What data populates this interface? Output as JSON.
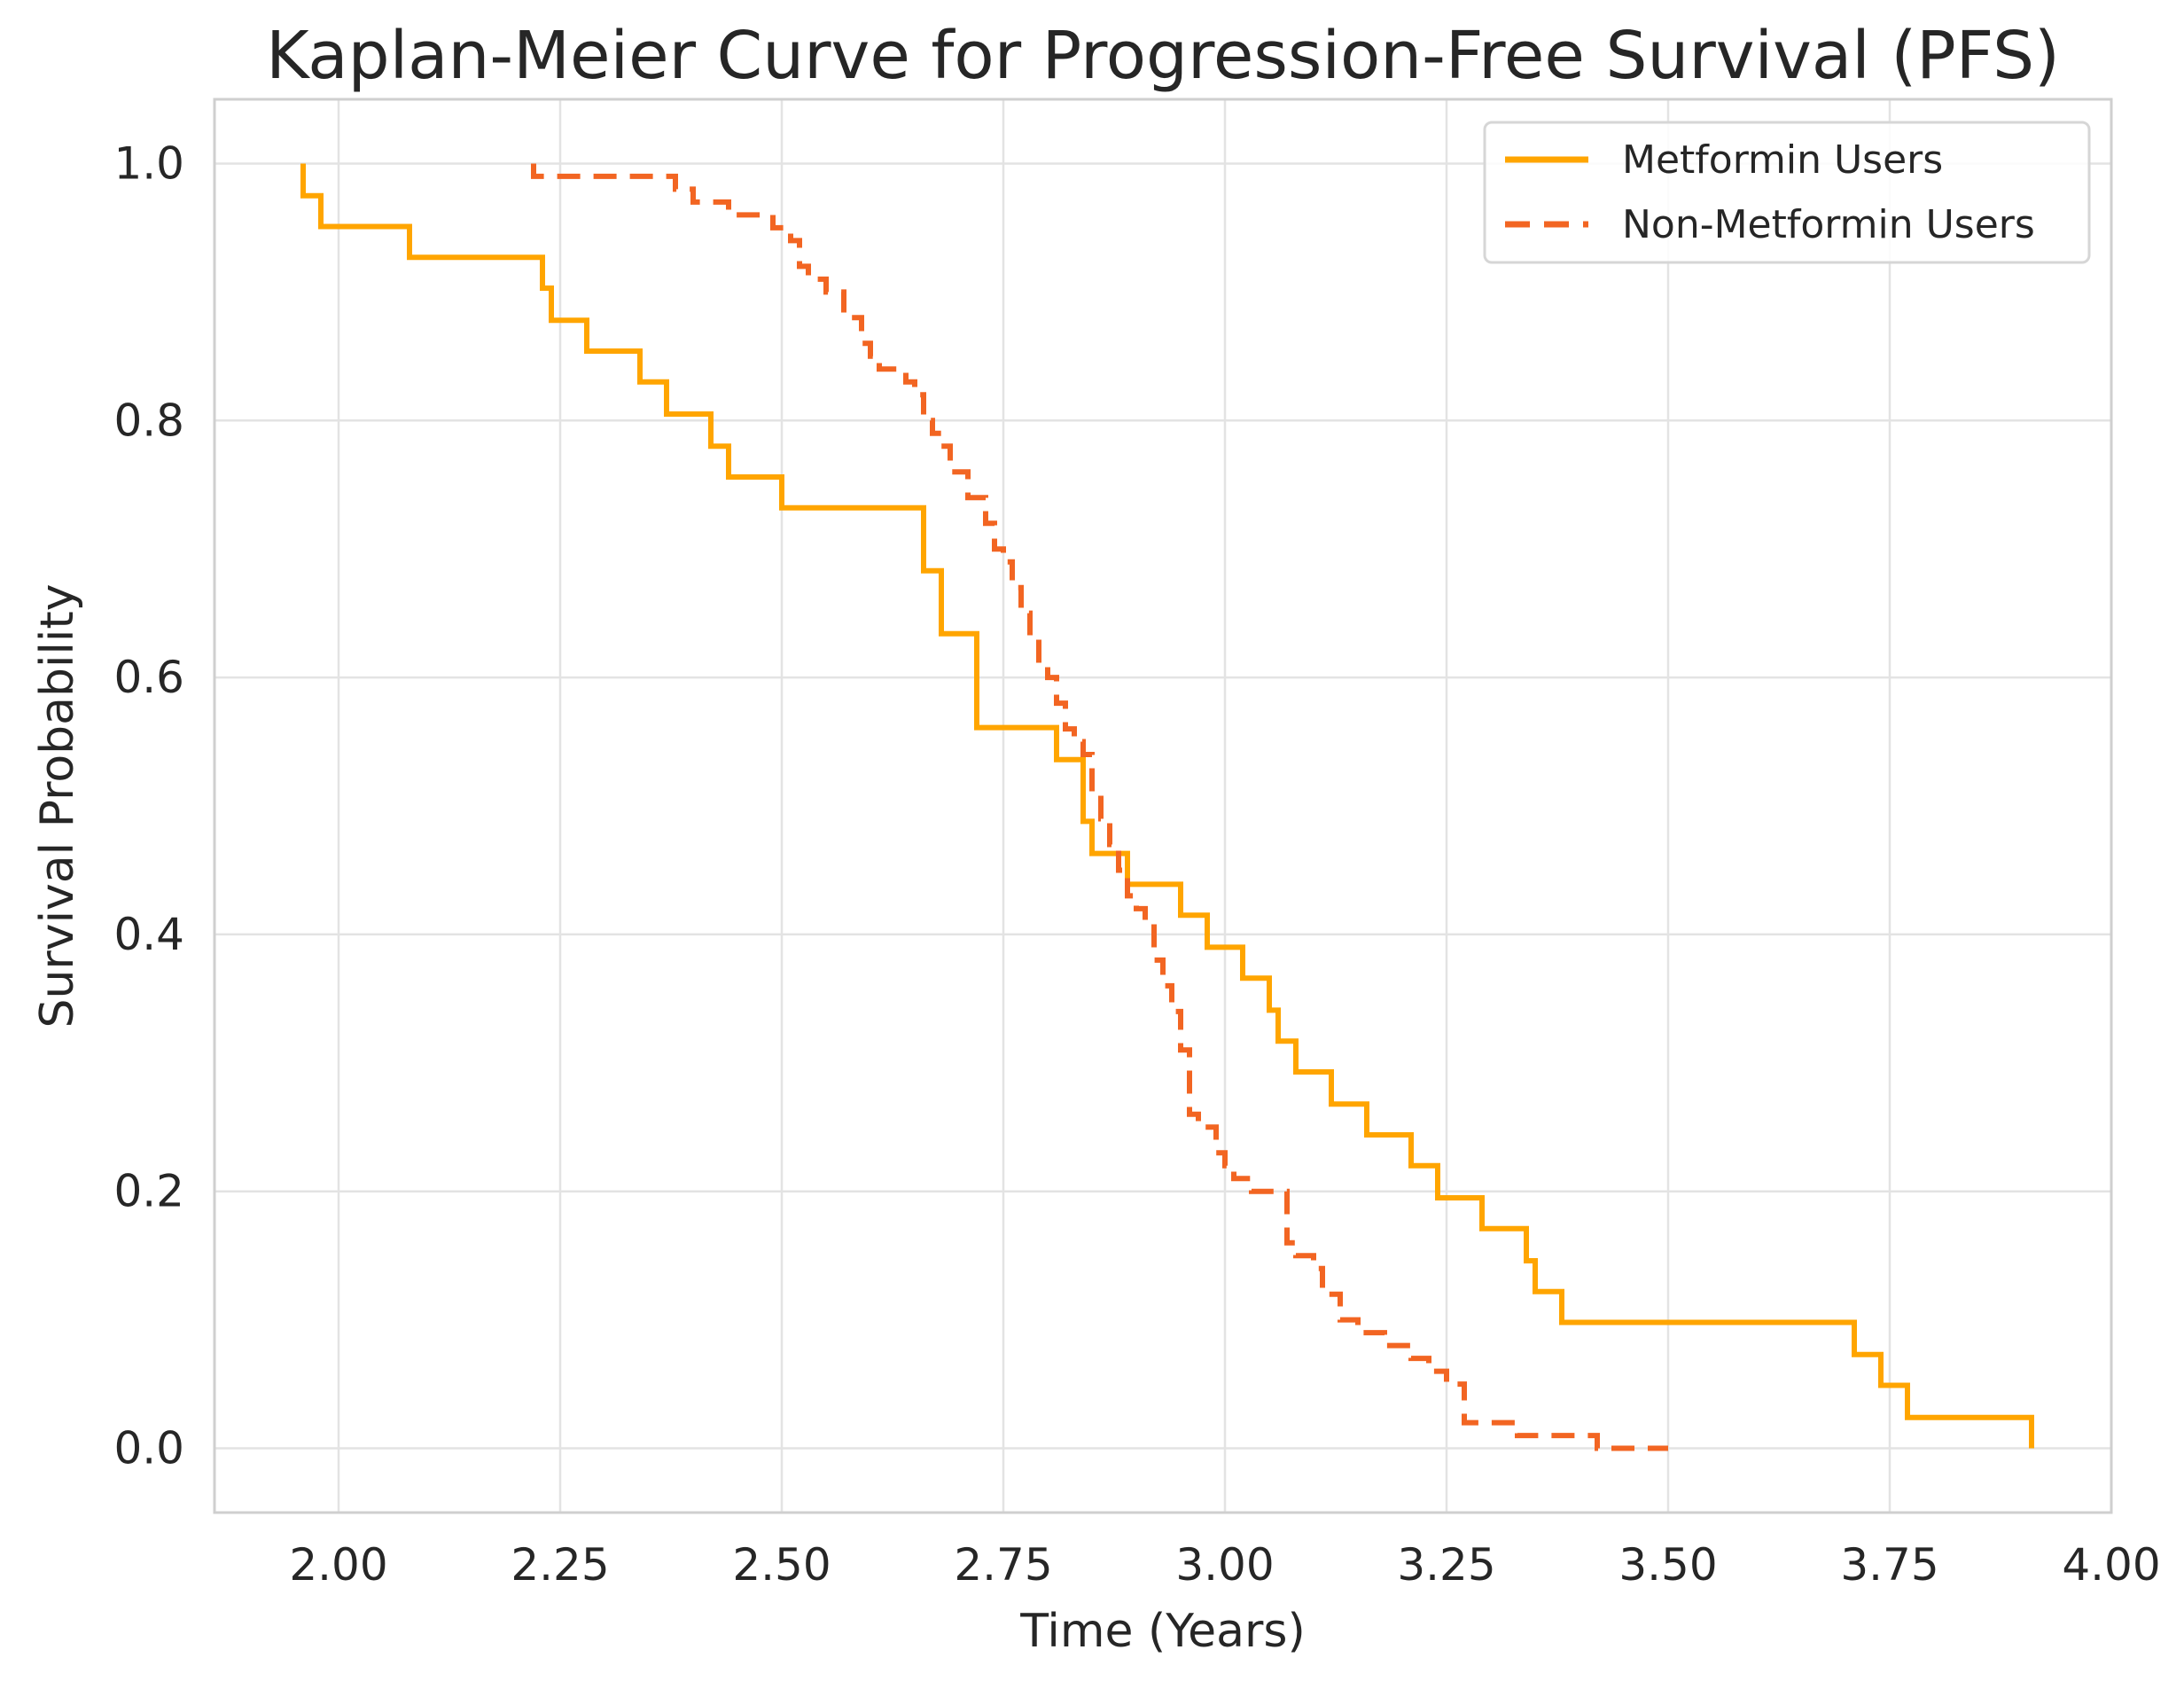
{
  "chart_data": {
    "type": "line",
    "title": "Kaplan-Meier Curve for Progression-Free Survival (PFS)",
    "xlabel": "Time (Years)",
    "ylabel": "Survival Probability",
    "xlim": [
      1.86,
      4.0
    ],
    "ylim": [
      -0.05,
      1.05
    ],
    "xticks": [
      2.0,
      2.25,
      2.5,
      2.75,
      3.0,
      3.25,
      3.5,
      3.75,
      4.0
    ],
    "xtick_labels": [
      "2.00",
      "2.25",
      "2.50",
      "2.75",
      "3.00",
      "3.25",
      "3.50",
      "3.75",
      "4.00"
    ],
    "yticks": [
      0.0,
      0.2,
      0.4,
      0.6,
      0.8,
      1.0
    ],
    "ytick_labels": [
      "0.0",
      "0.2",
      "0.4",
      "0.6",
      "0.8",
      "1.0"
    ],
    "grid": true,
    "legend_position": "top-right",
    "series": [
      {
        "name": "Metformin Users",
        "color": "#ffa500",
        "dash": "solid",
        "x": [
          1.96,
          1.96,
          1.98,
          2.08,
          2.23,
          2.23,
          2.24,
          2.28,
          2.34,
          2.37,
          2.42,
          2.44,
          2.5,
          2.66,
          2.66,
          2.68,
          2.68,
          2.72,
          2.72,
          2.72,
          2.81,
          2.84,
          2.84,
          2.85,
          2.89,
          2.95,
          2.98,
          3.02,
          3.05,
          3.06,
          3.06,
          3.08,
          3.12,
          3.16,
          3.21,
          3.24,
          3.29,
          3.34,
          3.35,
          3.38,
          3.71,
          3.74,
          3.77,
          3.91
        ],
        "y": [
          1.0,
          0.975,
          0.951,
          0.927,
          0.903,
          0.903,
          0.878,
          0.854,
          0.83,
          0.805,
          0.78,
          0.756,
          0.732,
          0.683,
          0.683,
          0.659,
          0.634,
          0.61,
          0.585,
          0.561,
          0.536,
          0.488,
          0.488,
          0.463,
          0.439,
          0.415,
          0.39,
          0.366,
          0.341,
          0.317,
          0.317,
          0.293,
          0.268,
          0.244,
          0.22,
          0.195,
          0.171,
          0.146,
          0.122,
          0.098,
          0.073,
          0.049,
          0.024,
          0.0
        ]
      },
      {
        "name": "Non-Metformin Users",
        "color": "#f26522",
        "dash": "dashed",
        "x": [
          2.22,
          2.22,
          2.38,
          2.4,
          2.44,
          2.49,
          2.51,
          2.52,
          2.53,
          2.55,
          2.57,
          2.59,
          2.6,
          2.61,
          2.62,
          2.64,
          2.65,
          2.66,
          2.66,
          2.67,
          2.68,
          2.69,
          2.71,
          2.72,
          2.73,
          2.74,
          2.75,
          2.76,
          2.77,
          2.78,
          2.79,
          2.8,
          2.81,
          2.82,
          2.83,
          2.84,
          2.85,
          2.86,
          2.87,
          2.88,
          2.89,
          2.9,
          2.91,
          2.92,
          2.93,
          2.94,
          2.95,
          2.96,
          2.97,
          2.99,
          3.0,
          3.01,
          3.03,
          3.07,
          3.08,
          3.1,
          3.11,
          3.13,
          3.15,
          3.18,
          3.21,
          3.23,
          3.25,
          3.27,
          3.33,
          3.42,
          3.5
        ],
        "y": [
          1.0,
          0.99,
          0.98,
          0.97,
          0.96,
          0.95,
          0.94,
          0.92,
          0.91,
          0.9,
          0.88,
          0.86,
          0.85,
          0.84,
          0.84,
          0.83,
          0.82,
          0.81,
          0.8,
          0.79,
          0.78,
          0.76,
          0.74,
          0.74,
          0.72,
          0.7,
          0.69,
          0.67,
          0.65,
          0.63,
          0.61,
          0.6,
          0.58,
          0.56,
          0.55,
          0.54,
          0.51,
          0.49,
          0.47,
          0.45,
          0.43,
          0.42,
          0.41,
          0.38,
          0.36,
          0.34,
          0.31,
          0.26,
          0.25,
          0.23,
          0.22,
          0.21,
          0.2,
          0.16,
          0.15,
          0.14,
          0.12,
          0.1,
          0.09,
          0.08,
          0.07,
          0.06,
          0.05,
          0.02,
          0.01,
          0.0,
          0.0
        ]
      }
    ]
  }
}
